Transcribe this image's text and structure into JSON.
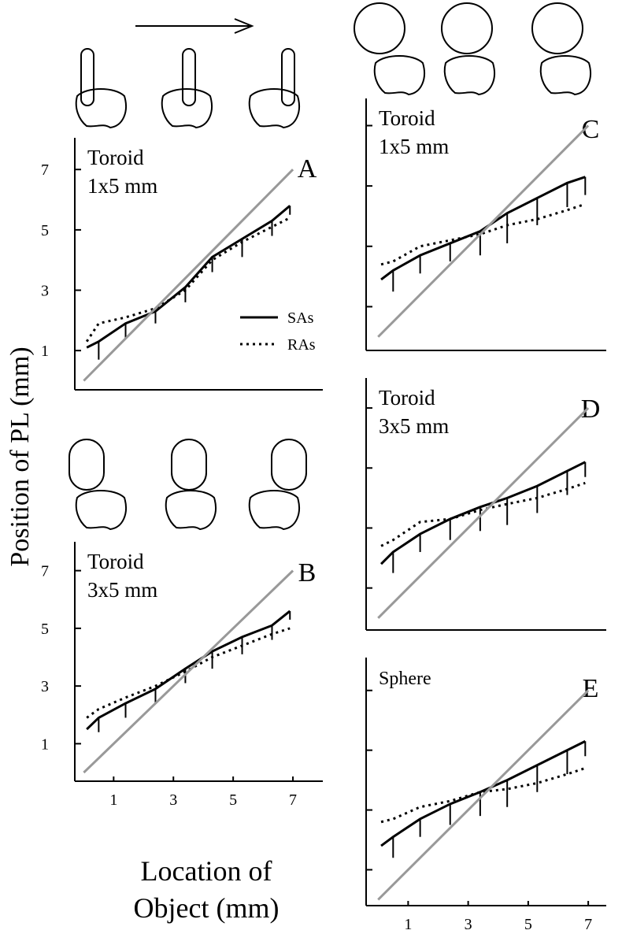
{
  "figure": {
    "ylabel": "Position of PL (mm)",
    "xlabel": [
      "Location of",
      "Object (mm)"
    ]
  },
  "chart_data": [
    {
      "type": "line",
      "label": "A",
      "annotation": [
        "Toroid",
        "1x5 mm"
      ],
      "xlim": [
        -0.3,
        8
      ],
      "ylim": [
        -0.3,
        8.05
      ],
      "yticks": [
        1,
        3,
        5,
        7
      ],
      "tick_labels": true,
      "legend": true,
      "series": [
        {
          "name": "SAs",
          "color": "#000000",
          "style": "solid",
          "x": [
            0.1,
            0.5,
            1.4,
            2.4,
            3.4,
            4.3,
            5.3,
            6.3,
            6.9
          ],
          "values": [
            1.1,
            1.3,
            1.9,
            2.3,
            3.1,
            4.1,
            4.7,
            5.3,
            5.8
          ],
          "errors": [
            null,
            0.6,
            0.5,
            0.4,
            0.5,
            0.5,
            0.6,
            0.5,
            0.3
          ]
        },
        {
          "name": "RAs",
          "color": "#000000",
          "style": "dotted",
          "x": [
            0.1,
            0.5,
            1.4,
            2.4,
            3.4,
            4.3,
            5.3,
            6.3,
            6.9
          ],
          "values": [
            1.3,
            1.9,
            2.1,
            2.4,
            3.0,
            4.0,
            4.6,
            5.1,
            5.4
          ]
        },
        {
          "color": "#999999",
          "style": "solid",
          "x": [
            0,
            7
          ],
          "values": [
            0,
            7
          ]
        }
      ]
    },
    {
      "type": "line",
      "label": "B",
      "annotation": [
        "Toroid",
        "3x5 mm"
      ],
      "xlim": [
        -0.3,
        8
      ],
      "ylim": [
        -0.3,
        8
      ],
      "yticks": [
        1,
        3,
        5,
        7
      ],
      "xticks": [
        1,
        3,
        5,
        7
      ],
      "tick_labels": true,
      "legend": false,
      "series": [
        {
          "color": "#000000",
          "style": "solid",
          "x": [
            0.1,
            0.5,
            1.4,
            2.4,
            3.4,
            4.3,
            5.3,
            6.3,
            6.9
          ],
          "values": [
            1.5,
            1.9,
            2.4,
            2.9,
            3.6,
            4.2,
            4.7,
            5.1,
            5.6
          ],
          "errors": [
            null,
            0.5,
            0.5,
            0.5,
            0.5,
            0.6,
            0.6,
            0.5,
            0.3
          ]
        },
        {
          "color": "#000000",
          "style": "dotted",
          "x": [
            0.1,
            0.5,
            1.4,
            2.4,
            3.4,
            4.3,
            5.3,
            6.3,
            6.9
          ],
          "values": [
            1.9,
            2.2,
            2.6,
            3.0,
            3.5,
            4.0,
            4.4,
            4.8,
            5.0
          ]
        },
        {
          "color": "#999999",
          "style": "solid",
          "x": [
            0,
            7
          ],
          "values": [
            0,
            7
          ]
        }
      ]
    },
    {
      "type": "line",
      "label": "C",
      "annotation": [
        "Toroid",
        "1x5 mm"
      ],
      "xlim": [
        -0.4,
        7.6
      ],
      "ylim": [
        -0.45,
        7.9
      ],
      "yticks": [
        1,
        3,
        5,
        7
      ],
      "tick_labels": false,
      "legend": false,
      "series": [
        {
          "color": "#000000",
          "style": "solid",
          "x": [
            0.1,
            0.5,
            1.4,
            2.4,
            3.4,
            4.3,
            5.3,
            6.3,
            6.9
          ],
          "values": [
            1.9,
            2.2,
            2.7,
            3.1,
            3.5,
            4.1,
            4.6,
            5.1,
            5.3
          ],
          "errors": [
            null,
            0.7,
            0.6,
            0.6,
            0.8,
            1.0,
            0.9,
            0.8,
            0.6
          ]
        },
        {
          "color": "#000000",
          "style": "dotted",
          "x": [
            0.1,
            0.5,
            1.4,
            2.4,
            3.4,
            4.3,
            5.3,
            6.3,
            6.9
          ],
          "values": [
            2.4,
            2.5,
            3.0,
            3.2,
            3.4,
            3.7,
            3.9,
            4.2,
            4.4
          ]
        },
        {
          "color": "#999999",
          "style": "solid",
          "x": [
            0,
            7
          ],
          "values": [
            0,
            7
          ]
        }
      ]
    },
    {
      "type": "line",
      "label": "D",
      "annotation": [
        "Toroid",
        "3x5 mm"
      ],
      "xlim": [
        -0.4,
        7.6
      ],
      "ylim": [
        -0.4,
        8
      ],
      "yticks": [
        1,
        3,
        5,
        7
      ],
      "tick_labels": false,
      "legend": false,
      "series": [
        {
          "color": "#000000",
          "style": "solid",
          "x": [
            0.1,
            0.5,
            1.4,
            2.4,
            3.4,
            4.3,
            5.3,
            6.3,
            6.9
          ],
          "values": [
            1.8,
            2.2,
            2.8,
            3.3,
            3.7,
            4.0,
            4.4,
            4.9,
            5.2
          ],
          "errors": [
            null,
            0.7,
            0.6,
            0.7,
            0.8,
            0.9,
            0.9,
            0.8,
            0.5
          ]
        },
        {
          "color": "#000000",
          "style": "dotted",
          "x": [
            0.1,
            0.5,
            1.4,
            2.4,
            3.4,
            4.3,
            5.3,
            6.3,
            6.9
          ],
          "values": [
            2.4,
            2.6,
            3.2,
            3.3,
            3.6,
            3.8,
            4.0,
            4.3,
            4.5
          ]
        },
        {
          "color": "#999999",
          "style": "solid",
          "x": [
            0,
            7
          ],
          "values": [
            0,
            7
          ]
        }
      ]
    },
    {
      "type": "line",
      "label": "E",
      "annotation": [
        "Sphere"
      ],
      "xlim": [
        -0.4,
        7.6
      ],
      "ylim": [
        -0.2,
        8.1
      ],
      "yticks": [
        1,
        3,
        5,
        7
      ],
      "xticks": [
        1,
        3,
        5,
        7
      ],
      "tick_labels": false,
      "legend": false,
      "series": [
        {
          "color": "#000000",
          "style": "solid",
          "x": [
            0.1,
            0.5,
            1.4,
            2.4,
            3.4,
            4.3,
            5.3,
            6.3,
            6.9
          ],
          "values": [
            1.8,
            2.1,
            2.7,
            3.2,
            3.6,
            4.0,
            4.5,
            5.0,
            5.3
          ],
          "errors": [
            null,
            0.7,
            0.6,
            0.7,
            0.8,
            0.9,
            0.9,
            0.8,
            0.5
          ]
        },
        {
          "color": "#000000",
          "style": "dotted",
          "x": [
            0.1,
            0.5,
            1.4,
            2.4,
            3.4,
            4.3,
            5.3,
            6.3,
            6.9
          ],
          "values": [
            2.6,
            2.7,
            3.1,
            3.3,
            3.6,
            3.7,
            3.9,
            4.2,
            4.4
          ]
        },
        {
          "color": "#999999",
          "style": "solid",
          "x": [
            0,
            7
          ],
          "values": [
            0,
            7
          ]
        }
      ]
    }
  ]
}
